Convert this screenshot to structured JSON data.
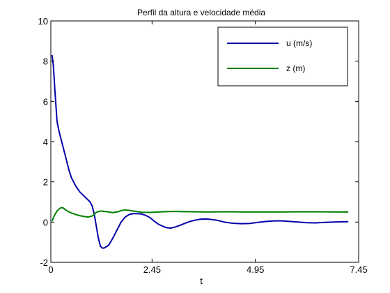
{
  "chart_data": {
    "type": "line",
    "title": "Perfil da altura e velocidade média",
    "xlabel": "t",
    "ylabel": "",
    "xlim": [
      0,
      7.45
    ],
    "ylim": [
      -2,
      10
    ],
    "xticks": [
      0,
      2.45,
      4.95,
      7.45
    ],
    "xtick_labels": [
      "0",
      "2.45",
      "4.95",
      "7.45"
    ],
    "yticks": [
      -2,
      0,
      2,
      4,
      6,
      8,
      10
    ],
    "ytick_labels": [
      "-2",
      "0",
      "2",
      "4",
      "6",
      "8",
      "10"
    ],
    "grid": false,
    "legend_position": "top-right",
    "series": [
      {
        "name": "u (m/s)",
        "color": "#0000aa",
        "x": [
          0.03,
          0.06,
          0.1,
          0.15,
          0.2,
          0.25,
          0.3,
          0.35,
          0.4,
          0.45,
          0.5,
          0.6,
          0.7,
          0.8,
          0.9,
          0.95,
          1.0,
          1.05,
          1.1,
          1.15,
          1.2,
          1.25,
          1.3,
          1.4,
          1.5,
          1.6,
          1.7,
          1.8,
          1.9,
          2.0,
          2.1,
          2.2,
          2.3,
          2.4,
          2.5,
          2.6,
          2.7,
          2.8,
          2.9,
          3.0,
          3.1,
          3.2,
          3.35,
          3.5,
          3.65,
          3.8,
          4.0,
          4.2,
          4.4,
          4.6,
          4.8,
          5.0,
          5.2,
          5.4,
          5.6,
          5.8,
          6.0,
          6.2,
          6.4,
          6.6,
          6.8,
          7.0,
          7.2
        ],
        "y": [
          8.3,
          7.8,
          6.5,
          5.0,
          4.5,
          4.1,
          3.7,
          3.3,
          2.9,
          2.5,
          2.2,
          1.8,
          1.5,
          1.3,
          1.1,
          1.0,
          0.8,
          0.4,
          -0.2,
          -0.8,
          -1.2,
          -1.3,
          -1.28,
          -1.15,
          -0.8,
          -0.4,
          0.0,
          0.25,
          0.38,
          0.42,
          0.42,
          0.4,
          0.33,
          0.22,
          0.05,
          -0.1,
          -0.2,
          -0.28,
          -0.3,
          -0.25,
          -0.18,
          -0.1,
          0.02,
          0.1,
          0.15,
          0.15,
          0.1,
          0.0,
          -0.06,
          -0.08,
          -0.07,
          -0.02,
          0.03,
          0.06,
          0.06,
          0.03,
          0.0,
          -0.03,
          -0.04,
          -0.02,
          0.0,
          0.01,
          0.02
        ]
      },
      {
        "name": "z (m)",
        "color": "#007f00",
        "x": [
          0.03,
          0.08,
          0.15,
          0.2,
          0.25,
          0.3,
          0.35,
          0.4,
          0.5,
          0.6,
          0.7,
          0.8,
          0.9,
          1.0,
          1.1,
          1.2,
          1.3,
          1.4,
          1.5,
          1.6,
          1.7,
          1.8,
          1.9,
          2.0,
          2.1,
          2.2,
          2.4,
          2.6,
          2.8,
          3.0,
          3.2,
          3.5,
          3.8,
          4.1,
          4.4,
          4.7,
          5.0,
          5.5,
          6.0,
          6.5,
          7.0,
          7.2
        ],
        "y": [
          0.05,
          0.3,
          0.55,
          0.65,
          0.72,
          0.7,
          0.62,
          0.55,
          0.45,
          0.38,
          0.32,
          0.28,
          0.25,
          0.3,
          0.48,
          0.55,
          0.53,
          0.5,
          0.47,
          0.5,
          0.57,
          0.6,
          0.58,
          0.55,
          0.52,
          0.49,
          0.48,
          0.5,
          0.52,
          0.53,
          0.52,
          0.51,
          0.5,
          0.51,
          0.51,
          0.5,
          0.5,
          0.5,
          0.51,
          0.51,
          0.5,
          0.5
        ]
      }
    ]
  }
}
